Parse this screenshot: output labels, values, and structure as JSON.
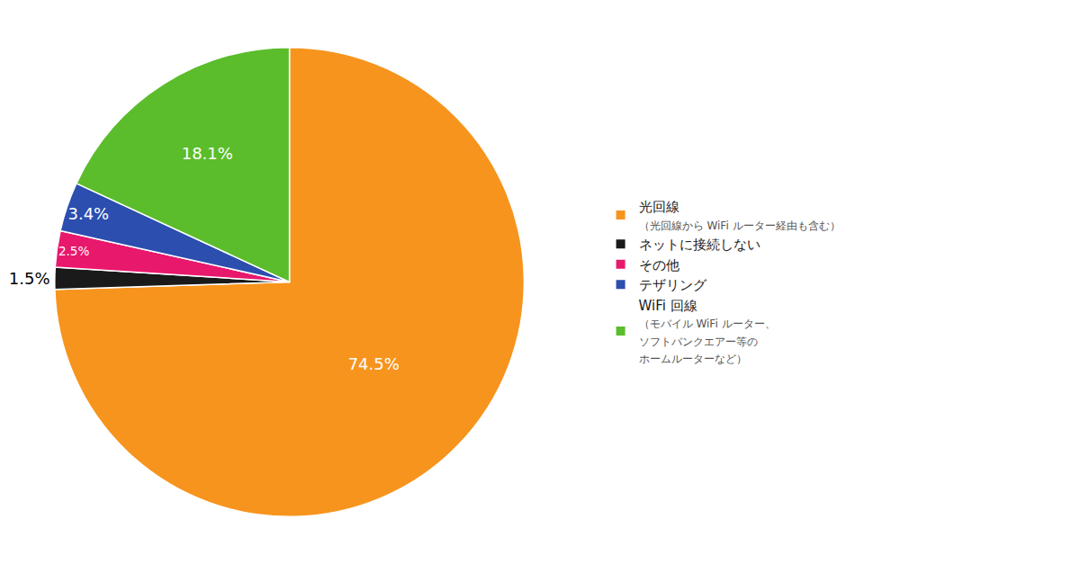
{
  "chart_data": {
    "type": "pie",
    "categories": [
      "光回線",
      "ネットに接続しない",
      "その他",
      "テザリング",
      "WiFi 回線"
    ],
    "values": [
      74.5,
      1.5,
      2.5,
      3.4,
      18.1
    ],
    "value_labels": [
      "74.5%",
      "1.5%",
      "2.5%",
      "3.4%",
      "18.1%"
    ],
    "data_labels": true,
    "colors": [
      "#F7941D",
      "#1A1A1A",
      "#E8186D",
      "#2B4EAF",
      "#5BBD2B"
    ],
    "label_colors": [
      "white",
      "black",
      "white",
      "white",
      "white"
    ],
    "label_outside": [
      false,
      true,
      false,
      false,
      false
    ],
    "legend": "right",
    "annotations": [
      {
        "category": "光回線",
        "lines": [
          "（光回線から WiFi ルーター経由も含む）"
        ]
      },
      {
        "category": "WiFi 回線",
        "lines": [
          "（モバイル WiFi ルーター、",
          "ソフトバンクエアー等の",
          "ホームルーターなど）"
        ]
      }
    ]
  }
}
